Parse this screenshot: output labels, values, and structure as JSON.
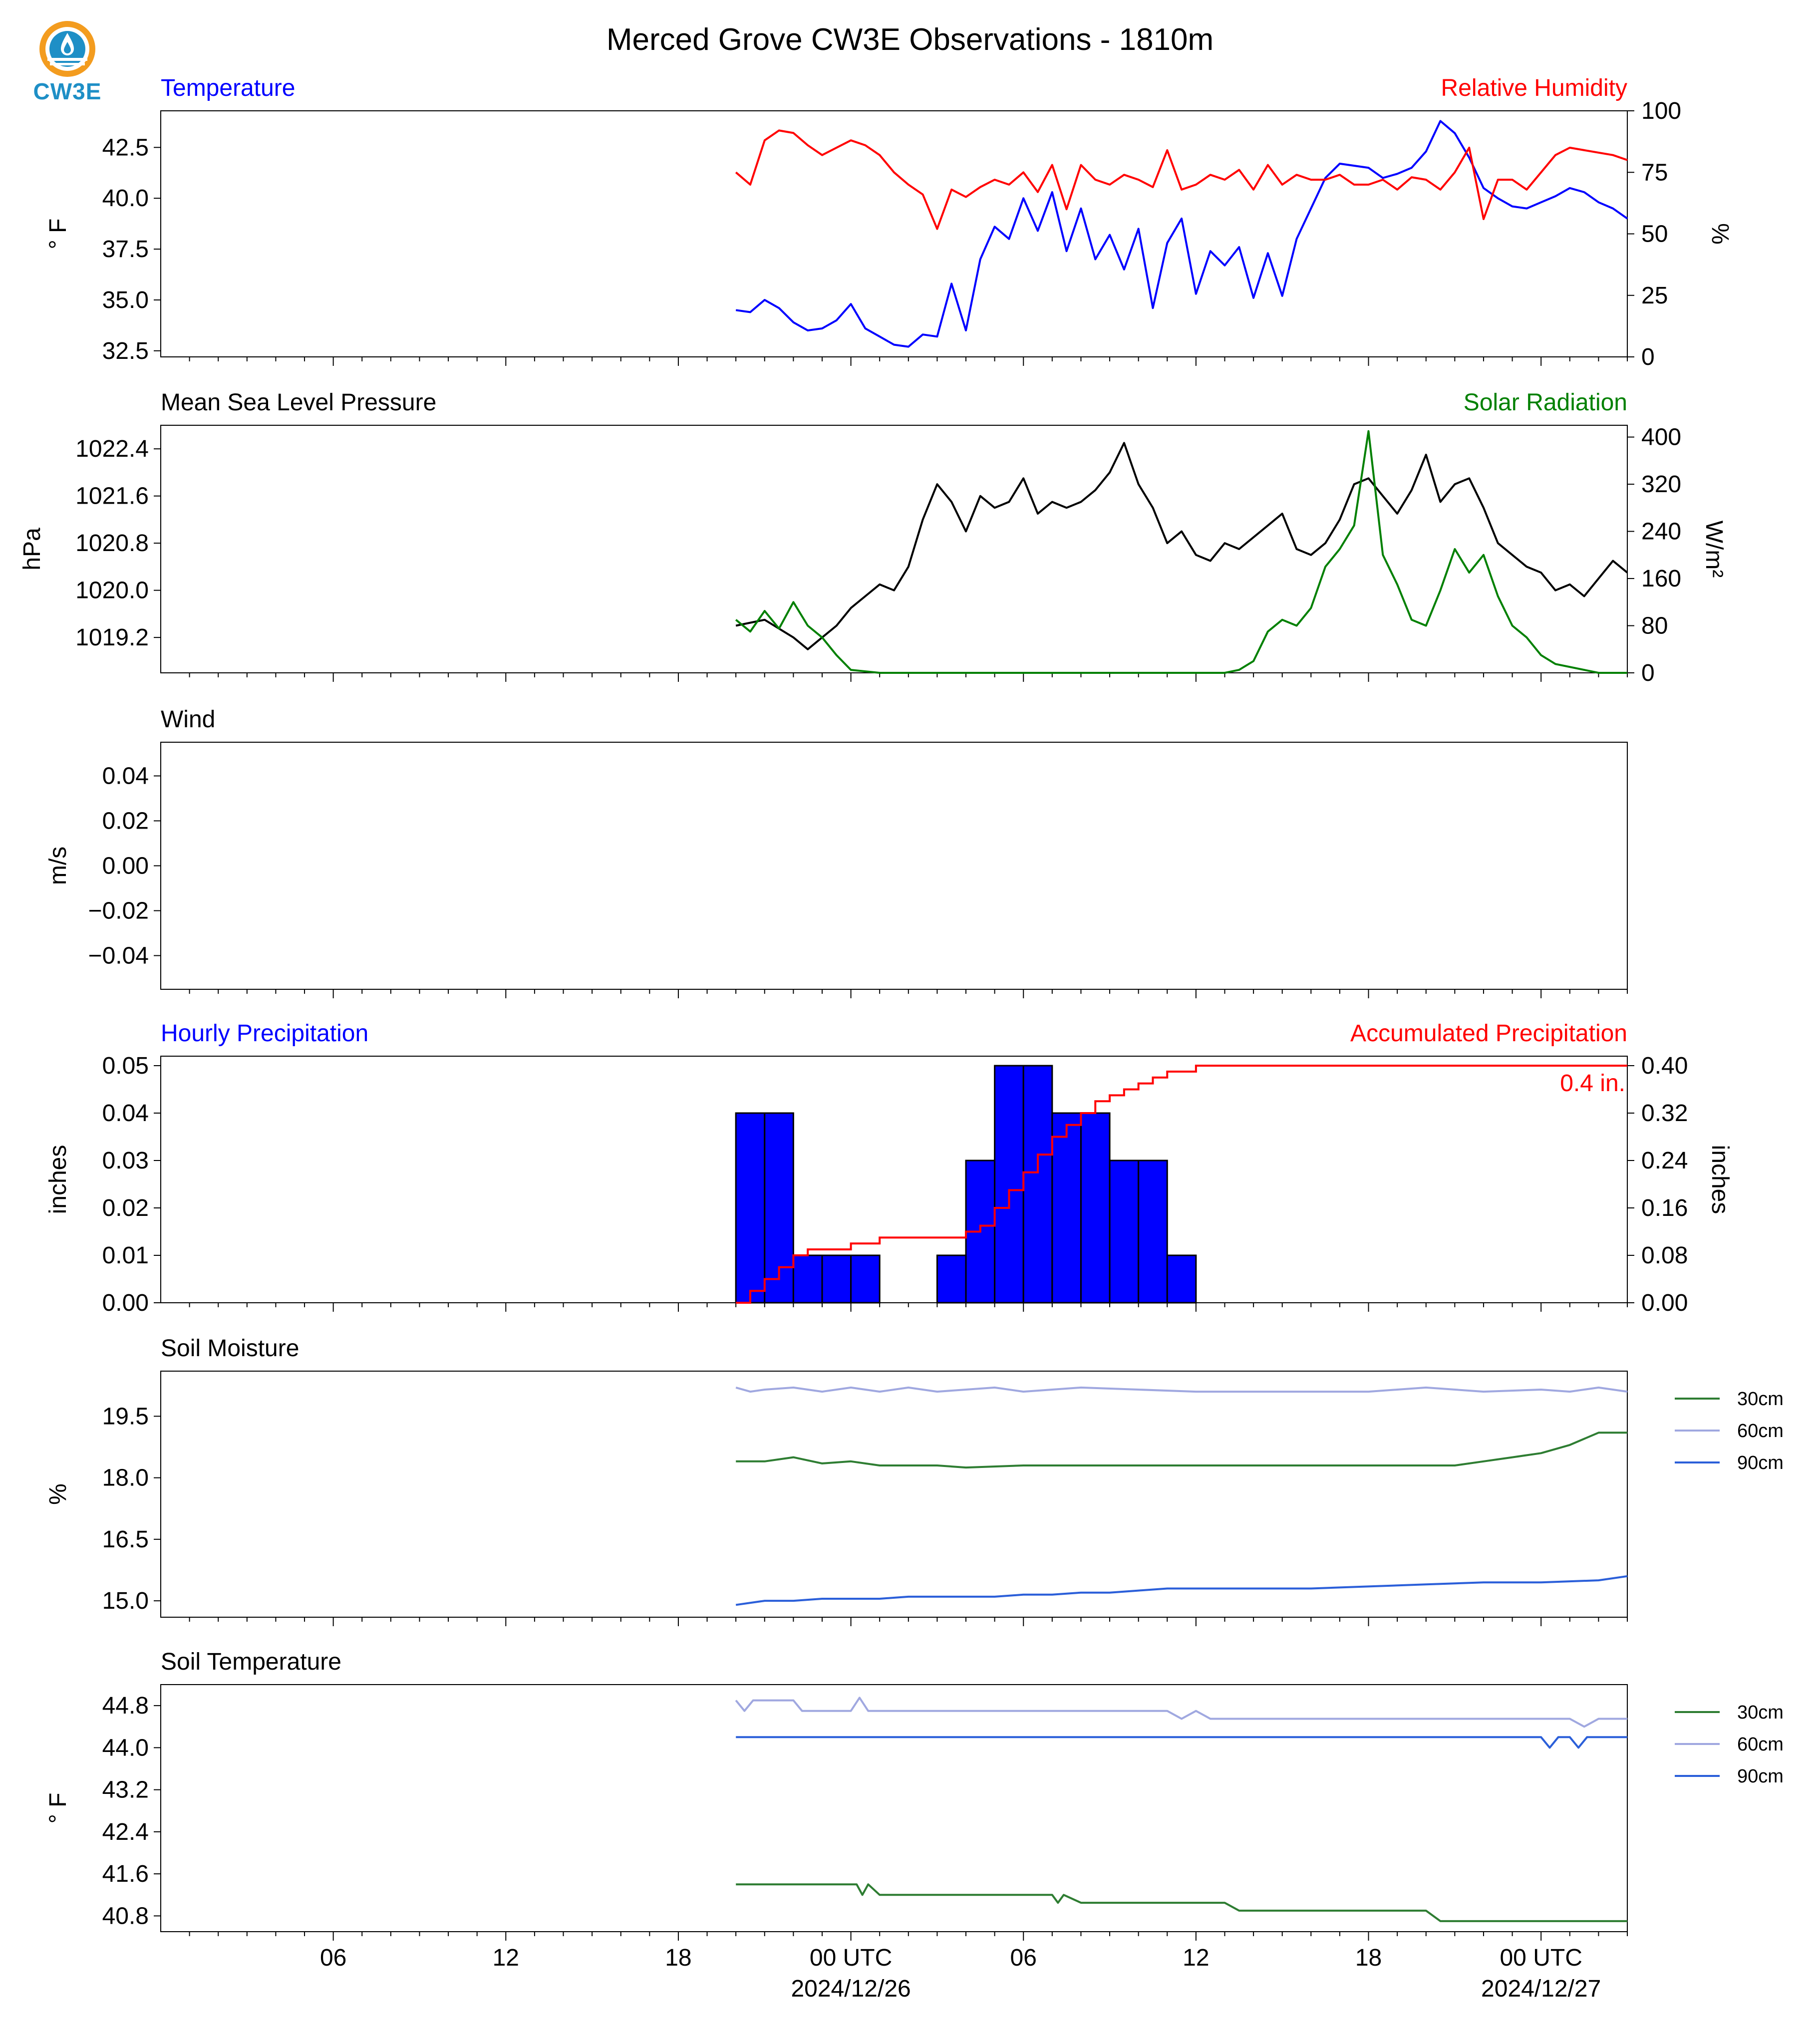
{
  "page_title": "Merced Grove CW3E Observations - 1810m",
  "logo": {
    "text": "CW3E",
    "icon": "cw3e-logo-icon"
  },
  "colors": {
    "blue": "#0000ff",
    "red": "#ff0000",
    "green": "#008000",
    "black": "#000000",
    "soil30": "#2e7d32",
    "soil60": "#a0a8e0",
    "soil90": "#2b5fd9"
  },
  "x_axis": {
    "tick_labels": [
      "06",
      "12",
      "18",
      "00 UTC",
      "06",
      "12",
      "18",
      "00 UTC"
    ],
    "date_labels": [
      "2024/12/26",
      "2024/12/27"
    ]
  },
  "chart_data": [
    {
      "type": "line",
      "left_title": "Temperature",
      "right_title": "Relative Humidity",
      "ylabel": "° F",
      "y2label": "%",
      "ylim": [
        32.2,
        44.3
      ],
      "y2lim": [
        0,
        100
      ],
      "yticks": [
        "32.5",
        "35.0",
        "37.5",
        "40.0",
        "42.5"
      ],
      "y2ticks": [
        "0",
        "25",
        "50",
        "75",
        "100"
      ],
      "series": [
        {
          "axis": "left",
          "color": "#0000ff",
          "x": [
            20,
            20.5,
            21,
            21.5,
            22,
            22.5,
            23,
            23.5,
            24,
            24.5,
            25,
            25.5,
            26,
            26.5,
            27,
            27.5,
            28,
            28.5,
            29,
            29.5,
            30,
            30.5,
            31,
            31.5,
            32,
            32.5,
            33,
            33.5,
            34,
            34.5,
            35,
            35.5,
            36,
            36.5,
            37,
            37.5,
            38,
            38.5,
            39,
            39.5,
            40,
            40.5,
            41,
            41.5,
            42,
            42.5,
            43,
            43.5,
            44,
            44.5,
            45,
            45.5,
            46,
            46.5,
            47,
            47.5,
            48,
            48.5,
            49,
            49.5,
            50,
            50.5,
            51
          ],
          "y": [
            34.5,
            34.4,
            35.0,
            34.6,
            33.9,
            33.5,
            33.6,
            34.0,
            34.8,
            33.6,
            33.2,
            32.8,
            32.7,
            33.3,
            33.2,
            35.8,
            33.5,
            37.0,
            38.6,
            38.0,
            40.0,
            38.4,
            40.3,
            37.4,
            39.5,
            37.0,
            38.2,
            36.5,
            38.5,
            34.6,
            37.8,
            39.0,
            35.3,
            37.4,
            36.7,
            37.6,
            35.1,
            37.3,
            35.2,
            38.0,
            39.5,
            41.0,
            41.7,
            41.6,
            41.5,
            41.0,
            41.2,
            41.5,
            42.3,
            43.8,
            43.2,
            42.0,
            40.5,
            40.0,
            39.6,
            39.5,
            39.8,
            40.1,
            40.5,
            40.3,
            39.8,
            39.5,
            39.0
          ]
        },
        {
          "axis": "right",
          "color": "#ff0000",
          "x": [
            20,
            20.5,
            21,
            21.5,
            22,
            22.5,
            23,
            23.5,
            24,
            24.5,
            25,
            25.5,
            26,
            26.5,
            27,
            27.5,
            28,
            28.5,
            29,
            29.5,
            30,
            30.5,
            31,
            31.5,
            32,
            32.5,
            33,
            33.5,
            34,
            34.5,
            35,
            35.5,
            36,
            36.5,
            37,
            37.5,
            38,
            38.5,
            39,
            39.5,
            40,
            40.5,
            41,
            41.5,
            42,
            42.5,
            43,
            43.5,
            44,
            44.5,
            45,
            45.5,
            46,
            46.5,
            47,
            47.5,
            48,
            48.5,
            49,
            49.5,
            50,
            50.5,
            51
          ],
          "y": [
            75,
            70,
            88,
            92,
            91,
            86,
            82,
            85,
            88,
            86,
            82,
            75,
            70,
            66,
            52,
            68,
            65,
            69,
            72,
            70,
            75,
            67,
            78,
            60,
            78,
            72,
            70,
            74,
            72,
            69,
            84,
            68,
            70,
            74,
            72,
            76,
            68,
            78,
            70,
            74,
            72,
            72,
            74,
            70,
            70,
            72,
            68,
            73,
            72,
            68,
            75,
            85,
            56,
            72,
            72,
            68,
            75,
            82,
            85,
            84,
            83,
            82,
            80
          ]
        }
      ]
    },
    {
      "type": "line",
      "left_title": "Mean Sea Level Pressure",
      "right_title": "Solar Radiation",
      "ylabel": "hPa",
      "y2label": "W/m²",
      "ylim": [
        1018.6,
        1022.8
      ],
      "y2lim": [
        0,
        420
      ],
      "yticks": [
        "1019.2",
        "1020.0",
        "1020.8",
        "1021.6",
        "1022.4"
      ],
      "y2ticks": [
        "0",
        "80",
        "160",
        "240",
        "320",
        "400"
      ],
      "series": [
        {
          "axis": "left",
          "color": "#000000",
          "x": [
            20,
            21,
            22,
            22.5,
            23,
            23.5,
            24,
            24.5,
            25,
            25.5,
            26,
            26.5,
            27,
            27.5,
            28,
            28.5,
            29,
            29.5,
            30,
            30.5,
            31,
            31.5,
            32,
            32.5,
            33,
            33.5,
            34,
            34.5,
            35,
            35.5,
            36,
            36.5,
            37,
            37.5,
            38,
            38.5,
            39,
            39.5,
            40,
            40.5,
            41,
            41.5,
            42,
            42.5,
            43,
            43.5,
            44,
            44.5,
            45,
            45.5,
            46,
            46.5,
            47,
            47.5,
            48,
            48.5,
            49,
            49.5,
            50,
            50.5,
            51
          ],
          "y": [
            1019.4,
            1019.5,
            1019.2,
            1019.0,
            1019.2,
            1019.4,
            1019.7,
            1019.9,
            1020.1,
            1020.0,
            1020.4,
            1021.2,
            1021.8,
            1021.5,
            1021.0,
            1021.6,
            1021.4,
            1021.5,
            1021.9,
            1021.3,
            1021.5,
            1021.4,
            1021.5,
            1021.7,
            1022.0,
            1022.5,
            1021.8,
            1021.4,
            1020.8,
            1021.0,
            1020.6,
            1020.5,
            1020.8,
            1020.7,
            1020.9,
            1021.1,
            1021.3,
            1020.7,
            1020.6,
            1020.8,
            1021.2,
            1021.8,
            1021.9,
            1021.6,
            1021.3,
            1021.7,
            1022.3,
            1021.5,
            1021.8,
            1021.9,
            1021.4,
            1020.8,
            1020.6,
            1020.4,
            1020.3,
            1020.0,
            1020.1,
            1019.9,
            1020.2,
            1020.5,
            1020.3
          ]
        },
        {
          "axis": "right",
          "color": "#008000",
          "x": [
            20,
            20.5,
            21,
            21.5,
            22,
            22.5,
            23,
            23.5,
            24,
            25,
            28,
            30,
            32,
            34,
            36,
            37,
            37.5,
            38,
            38.5,
            39,
            39.5,
            40,
            40.5,
            41,
            41.5,
            42,
            42.5,
            43,
            43.5,
            44,
            44.5,
            45,
            45.5,
            46,
            46.5,
            47,
            47.5,
            48,
            48.5,
            49,
            49.5,
            50,
            50.5,
            51
          ],
          "y": [
            90,
            70,
            105,
            75,
            120,
            80,
            60,
            30,
            5,
            0,
            0,
            0,
            0,
            0,
            0,
            0,
            5,
            20,
            70,
            90,
            80,
            110,
            180,
            210,
            250,
            410,
            200,
            150,
            90,
            80,
            140,
            210,
            170,
            200,
            130,
            80,
            60,
            30,
            15,
            10,
            5,
            0,
            0,
            0
          ]
        }
      ]
    },
    {
      "type": "line",
      "left_title": "Wind",
      "ylabel": "m/s",
      "ylim": [
        -0.055,
        0.055
      ],
      "yticks": [
        "−0.04",
        "−0.02",
        "0.00",
        "0.02",
        "0.04"
      ],
      "series": []
    },
    {
      "type": "bar",
      "left_title": "Hourly Precipitation",
      "right_title": "Accumulated Precipitation",
      "ylabel": "inches",
      "y2label": "inches",
      "ylim": [
        0,
        0.052
      ],
      "y2lim": [
        0,
        0.416
      ],
      "yticks": [
        "0.00",
        "0.01",
        "0.02",
        "0.03",
        "0.04",
        "0.05"
      ],
      "y2ticks": [
        "0.00",
        "0.08",
        "0.16",
        "0.24",
        "0.32",
        "0.40"
      ],
      "total_label": "0.4 in.",
      "bars": {
        "color": "#0000ff",
        "hour_start": [
          20,
          21,
          22,
          23,
          24,
          27,
          28,
          29,
          30,
          31,
          32,
          33,
          34,
          35,
          36
        ],
        "values": [
          0.04,
          0.04,
          0.01,
          0.01,
          0.01,
          0.01,
          0.03,
          0.05,
          0.05,
          0.04,
          0.04,
          0.03,
          0.03,
          0.01,
          0
        ]
      },
      "accum": {
        "color": "#ff0000",
        "x": [
          20,
          20.5,
          21,
          21.5,
          22,
          22.5,
          23,
          24,
          25,
          26,
          27,
          28,
          28.5,
          29,
          29.5,
          30,
          30.5,
          31,
          31.5,
          32,
          32.5,
          33,
          33.5,
          34,
          34.5,
          35,
          36,
          38,
          40,
          42,
          44,
          46,
          48,
          51
        ],
        "y": [
          0,
          0.02,
          0.04,
          0.06,
          0.08,
          0.09,
          0.09,
          0.1,
          0.11,
          0.11,
          0.11,
          0.12,
          0.13,
          0.16,
          0.19,
          0.22,
          0.25,
          0.28,
          0.3,
          0.32,
          0.34,
          0.35,
          0.36,
          0.37,
          0.38,
          0.39,
          0.4,
          0.4,
          0.4,
          0.4,
          0.4,
          0.4,
          0.4,
          0.4
        ]
      }
    },
    {
      "type": "line",
      "left_title": "Soil Moisture",
      "ylabel": "%",
      "ylim": [
        14.6,
        20.6
      ],
      "yticks": [
        "15.0",
        "16.5",
        "18.0",
        "19.5"
      ],
      "legend": [
        "30cm",
        "60cm",
        "90cm"
      ],
      "series": [
        {
          "name": "30cm",
          "color": "#2e7d32",
          "x": [
            20,
            21,
            22,
            23,
            24,
            25,
            26,
            27,
            28,
            30,
            32,
            34,
            36,
            38,
            40,
            42,
            44,
            45,
            46,
            47,
            48,
            49,
            50,
            51
          ],
          "y": [
            18.4,
            18.4,
            18.5,
            18.35,
            18.4,
            18.3,
            18.3,
            18.3,
            18.25,
            18.3,
            18.3,
            18.3,
            18.3,
            18.3,
            18.3,
            18.3,
            18.3,
            18.3,
            18.4,
            18.5,
            18.6,
            18.8,
            19.1,
            19.1
          ]
        },
        {
          "name": "60cm",
          "color": "#a0a8e0",
          "x": [
            20,
            20.5,
            21,
            22,
            23,
            24,
            25,
            26,
            27,
            28,
            29,
            30,
            32,
            34,
            36,
            38,
            40,
            42,
            44,
            46,
            48,
            49,
            50,
            51
          ],
          "y": [
            20.2,
            20.1,
            20.15,
            20.2,
            20.1,
            20.2,
            20.1,
            20.2,
            20.1,
            20.15,
            20.2,
            20.1,
            20.2,
            20.15,
            20.1,
            20.1,
            20.1,
            20.1,
            20.2,
            20.1,
            20.15,
            20.1,
            20.2,
            20.1
          ]
        },
        {
          "name": "90cm",
          "color": "#2b5fd9",
          "x": [
            20,
            21,
            22,
            23,
            24,
            25,
            26,
            27,
            28,
            29,
            30,
            31,
            32,
            33,
            34,
            35,
            36,
            38,
            40,
            42,
            44,
            46,
            48,
            50,
            51
          ],
          "y": [
            14.9,
            15.0,
            15.0,
            15.05,
            15.05,
            15.05,
            15.1,
            15.1,
            15.1,
            15.1,
            15.15,
            15.15,
            15.2,
            15.2,
            15.25,
            15.3,
            15.3,
            15.3,
            15.3,
            15.35,
            15.4,
            15.45,
            15.45,
            15.5,
            15.6
          ]
        }
      ]
    },
    {
      "type": "line",
      "left_title": "Soil Temperature",
      "ylabel": "° F",
      "ylim": [
        40.5,
        45.2
      ],
      "yticks": [
        "40.8",
        "41.6",
        "42.4",
        "43.2",
        "44.0",
        "44.8"
      ],
      "legend": [
        "30cm",
        "60cm",
        "90cm"
      ],
      "series": [
        {
          "name": "30cm",
          "color": "#2e7d32",
          "x": [
            20,
            24.2,
            24.4,
            24.6,
            25,
            31,
            31.2,
            31.4,
            32,
            37,
            37.5,
            44,
            44.5,
            50.5,
            51
          ],
          "y": [
            41.4,
            41.4,
            41.2,
            41.4,
            41.2,
            41.2,
            41.05,
            41.2,
            41.05,
            41.05,
            40.9,
            40.9,
            40.7,
            40.7,
            40.7
          ]
        },
        {
          "name": "60cm",
          "color": "#a0a8e0",
          "x": [
            20,
            20.3,
            20.6,
            21,
            22,
            22.3,
            24,
            24.3,
            24.6,
            25,
            30,
            35,
            35.5,
            36,
            36.5,
            37,
            49,
            49.5,
            50,
            51
          ],
          "y": [
            44.9,
            44.7,
            44.9,
            44.9,
            44.9,
            44.7,
            44.7,
            44.95,
            44.7,
            44.7,
            44.7,
            44.7,
            44.55,
            44.7,
            44.55,
            44.55,
            44.55,
            44.4,
            44.55,
            44.55
          ]
        },
        {
          "name": "90cm",
          "color": "#2b5fd9",
          "x": [
            20,
            30,
            40,
            48,
            48.3,
            48.6,
            49,
            49.3,
            49.6,
            51
          ],
          "y": [
            44.2,
            44.2,
            44.2,
            44.2,
            44.0,
            44.2,
            44.2,
            44.0,
            44.2,
            44.2
          ]
        }
      ]
    }
  ]
}
